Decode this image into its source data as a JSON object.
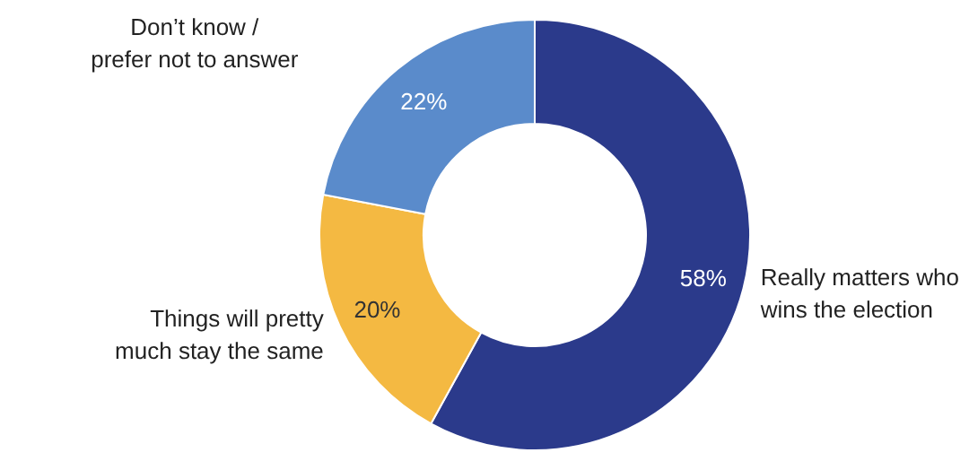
{
  "chart_data": {
    "type": "donut",
    "categories": [
      "Really matters who wins the election",
      "Things will pretty much stay the same",
      "Don’t know / prefer not to answer"
    ],
    "values": [
      58,
      20,
      22
    ],
    "colors": [
      "#2b3a8b",
      "#f4b942",
      "#5a8bcb"
    ],
    "value_labels": [
      "58%",
      "20%",
      "22%"
    ]
  }
}
